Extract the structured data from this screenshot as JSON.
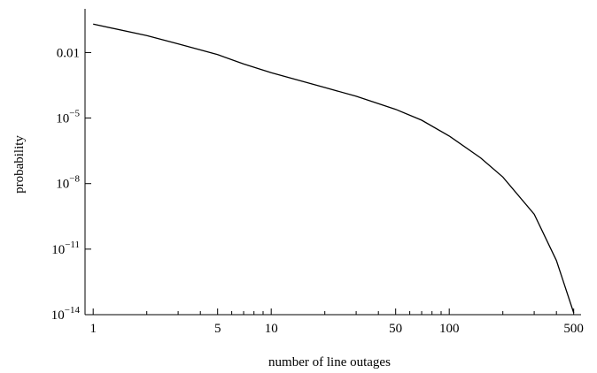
{
  "chart_data": {
    "type": "line",
    "title": "",
    "xlabel": "number of line outages",
    "ylabel": "probability",
    "x_scale": "log",
    "y_scale": "log",
    "xlim": [
      0.9,
      550
    ],
    "ylim": [
      1e-14,
      1
    ],
    "grid": false,
    "x_ticks": [
      {
        "value": 1,
        "label": "1"
      },
      {
        "value": 5,
        "label": "5"
      },
      {
        "value": 10,
        "label": "10"
      },
      {
        "value": 50,
        "label": "50"
      },
      {
        "value": 100,
        "label": "100"
      },
      {
        "value": 500,
        "label": "500"
      }
    ],
    "x_minor_ticks": [
      2,
      3,
      4,
      6,
      7,
      8,
      9,
      20,
      30,
      40,
      60,
      70,
      80,
      90,
      200,
      300,
      400
    ],
    "y_ticks": [
      {
        "value": 0.01,
        "label": "0.01"
      },
      {
        "value": 1e-05,
        "label": "10",
        "exp": "−5"
      },
      {
        "value": 1e-08,
        "label": "10",
        "exp": "−8"
      },
      {
        "value": 1e-11,
        "label": "10",
        "exp": "−11"
      },
      {
        "value": 1e-14,
        "label": "10",
        "exp": "−14"
      }
    ],
    "series": [
      {
        "x": [
          1,
          2,
          3,
          5,
          7,
          10,
          20,
          30,
          50,
          70,
          100,
          150,
          200,
          300,
          400,
          500
        ],
        "y": [
          0.2,
          0.06,
          0.025,
          0.008,
          0.003,
          0.0012,
          0.00025,
          0.0001,
          2.5e-05,
          8e-06,
          1.5e-06,
          1.5e-07,
          2e-08,
          4e-10,
          3e-12,
          1.2e-14
        ]
      }
    ]
  }
}
